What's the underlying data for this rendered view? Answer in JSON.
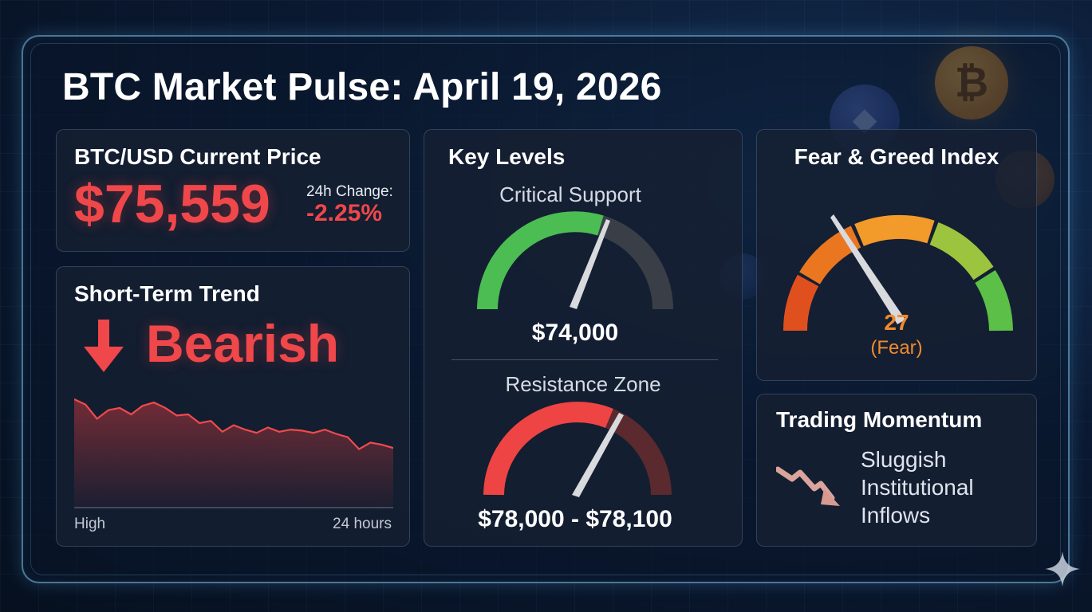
{
  "title": "BTC Market Pulse: April 19, 2026",
  "colors": {
    "bearish": "#f0474a",
    "support": "#4bbd52",
    "fear": "#f08a2c",
    "greed": "#5cbf48",
    "neutral": "#3a4250"
  },
  "price_card": {
    "title": "BTC/USD Current Price",
    "price": "$75,559",
    "change_label": "24h Change:",
    "change_value": "-2.25%",
    "icon": "coin-bitcoin-icon"
  },
  "trend_card": {
    "title": "Short-Term Trend",
    "trend": "Bearish",
    "icon": "down-arrow-icon",
    "axis_left": "High",
    "axis_right": "24 hours"
  },
  "levels_card": {
    "title": "Key Levels",
    "support_label": "Critical Support",
    "support_value": "$74,000",
    "resistance_label": "Resistance Zone",
    "resistance_value": "$78,000 - $78,100"
  },
  "fear_greed": {
    "title": "Fear & Greed Index",
    "value": "27",
    "label": "(Fear)",
    "level": 27
  },
  "momentum_card": {
    "title": "Trading Momentum",
    "lines": [
      "Sluggish",
      "Institutional",
      "Inflows"
    ],
    "icon": "trend-down-arrow-icon"
  },
  "chart_data": {
    "type": "area",
    "x": [
      0,
      1,
      2,
      3,
      4,
      5,
      6,
      7,
      8,
      9,
      10,
      11,
      12,
      13,
      14,
      15,
      16,
      17,
      18,
      19,
      20,
      21,
      22,
      23,
      24,
      25,
      26,
      27,
      28
    ],
    "y": [
      100,
      95,
      82,
      90,
      92,
      86,
      94,
      97,
      92,
      85,
      86,
      78,
      80,
      70,
      76,
      72,
      69,
      74,
      70,
      72,
      71,
      69,
      72,
      68,
      65,
      54,
      60,
      58,
      55
    ],
    "xlabel": "",
    "ylabel": ""
  }
}
